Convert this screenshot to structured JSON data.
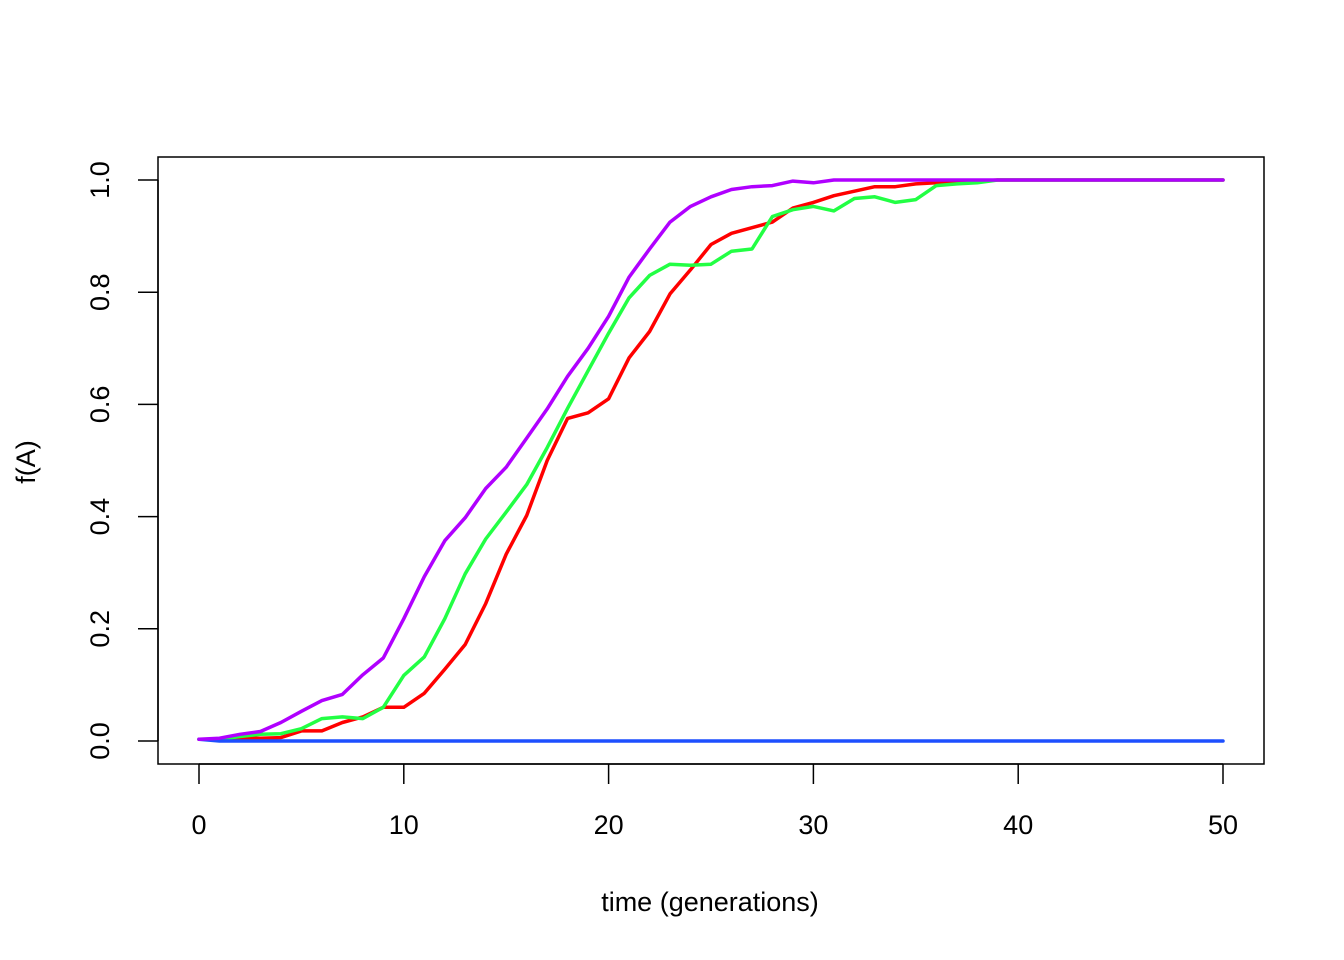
{
  "chart_data": {
    "type": "line",
    "title": "",
    "xlabel": "time (generations)",
    "ylabel": "f(A)",
    "xlim": [
      0,
      50
    ],
    "ylim": [
      0,
      1
    ],
    "x_ticks": [
      0,
      10,
      20,
      30,
      40,
      50
    ],
    "y_ticks": [
      0.0,
      0.2,
      0.4,
      0.6,
      0.8,
      1.0
    ],
    "x_tick_labels": [
      "0",
      "10",
      "20",
      "30",
      "40",
      "50"
    ],
    "y_tick_labels": [
      "0.0",
      "0.2",
      "0.4",
      "0.6",
      "0.8",
      "1.0"
    ],
    "grid": false,
    "legend": "none",
    "x": [
      0,
      1,
      2,
      3,
      4,
      5,
      6,
      7,
      8,
      9,
      10,
      11,
      12,
      13,
      14,
      15,
      16,
      17,
      18,
      19,
      20,
      21,
      22,
      23,
      24,
      25,
      26,
      27,
      28,
      29,
      30,
      31,
      32,
      33,
      34,
      35,
      36,
      37,
      38,
      39,
      40,
      41,
      42,
      43,
      44,
      45,
      46,
      47,
      48,
      49,
      50
    ],
    "series": [
      {
        "color": "#ff0000",
        "values": [
          0.003,
          0.003,
          0.005,
          0.005,
          0.006,
          0.018,
          0.018,
          0.033,
          0.043,
          0.06,
          0.06,
          0.085,
          0.128,
          0.172,
          0.245,
          0.333,
          0.402,
          0.5,
          0.575,
          0.585,
          0.61,
          0.683,
          0.73,
          0.797,
          0.84,
          0.885,
          0.905,
          0.915,
          0.925,
          0.95,
          0.96,
          0.972,
          0.98,
          0.988,
          0.988,
          0.993,
          0.995,
          0.997,
          0.998,
          1,
          1,
          1,
          1,
          1,
          1,
          1,
          1,
          1,
          1,
          1,
          1
        ]
      },
      {
        "color": "#22ff44",
        "values": [
          0.003,
          0.003,
          0.008,
          0.012,
          0.013,
          0.022,
          0.04,
          0.043,
          0.04,
          0.06,
          0.117,
          0.15,
          0.218,
          0.298,
          0.36,
          0.408,
          0.457,
          0.523,
          0.593,
          0.66,
          0.727,
          0.79,
          0.83,
          0.85,
          0.848,
          0.85,
          0.873,
          0.877,
          0.935,
          0.947,
          0.953,
          0.945,
          0.967,
          0.97,
          0.96,
          0.965,
          0.99,
          0.993,
          0.995,
          1,
          1,
          1,
          1,
          1,
          1,
          1,
          1,
          1,
          1,
          1,
          1
        ]
      },
      {
        "color": "#1d4fff",
        "values": [
          0.003,
          0,
          0,
          0,
          0,
          0,
          0,
          0,
          0,
          0,
          0,
          0,
          0,
          0,
          0,
          0,
          0,
          0,
          0,
          0,
          0,
          0,
          0,
          0,
          0,
          0,
          0,
          0,
          0,
          0,
          0,
          0,
          0,
          0,
          0,
          0,
          0,
          0,
          0,
          0,
          0,
          0,
          0,
          0,
          0,
          0,
          0,
          0,
          0,
          0,
          0
        ]
      },
      {
        "color": "#b000ff",
        "values": [
          0.003,
          0.005,
          0.012,
          0.017,
          0.033,
          0.053,
          0.072,
          0.083,
          0.118,
          0.148,
          0.218,
          0.293,
          0.357,
          0.398,
          0.45,
          0.488,
          0.54,
          0.592,
          0.65,
          0.7,
          0.757,
          0.827,
          0.877,
          0.925,
          0.953,
          0.97,
          0.983,
          0.988,
          0.99,
          0.998,
          0.995,
          1,
          1,
          1,
          1,
          1,
          1,
          1,
          1,
          1,
          1,
          1,
          1,
          1,
          1,
          1,
          1,
          1,
          1,
          1,
          1
        ]
      }
    ]
  }
}
